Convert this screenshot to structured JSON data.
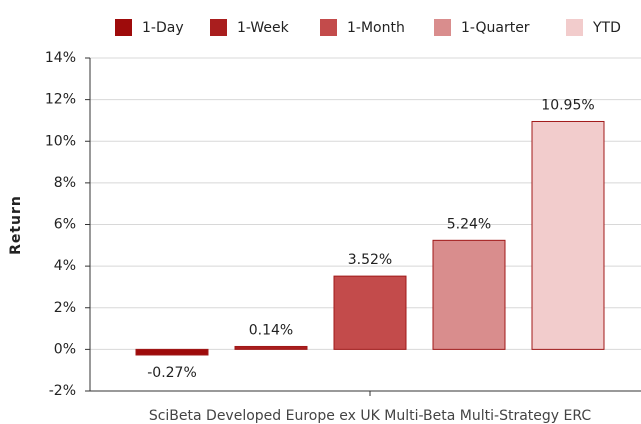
{
  "chart_data": {
    "type": "bar",
    "ylabel": "Return",
    "categories": [
      "SciBeta Developed Europe ex UK Multi-Beta Multi-Strategy ERC"
    ],
    "series": [
      {
        "name": "1-Day",
        "color": "#9e0b0b",
        "values": [
          -0.27
        ],
        "value_labels": [
          "-0.27%"
        ]
      },
      {
        "name": "1-Week",
        "color": "#a91e1e",
        "values": [
          0.14
        ],
        "value_labels": [
          "0.14%"
        ]
      },
      {
        "name": "1-Month",
        "color": "#c34b4b",
        "values": [
          3.52
        ],
        "value_labels": [
          "3.52%"
        ]
      },
      {
        "name": "1-Quarter",
        "color": "#d98d8d",
        "values": [
          5.24
        ],
        "value_labels": [
          "5.24%"
        ]
      },
      {
        "name": "YTD",
        "color": "#f2cccc",
        "values": [
          10.95
        ],
        "value_labels": [
          "10.95%"
        ]
      }
    ],
    "ylim": [
      -2,
      14
    ],
    "yticks": [
      {
        "value": -2,
        "label": "-2%"
      },
      {
        "value": 0,
        "label": "0%"
      },
      {
        "value": 2,
        "label": "2%"
      },
      {
        "value": 4,
        "label": "4%"
      },
      {
        "value": 6,
        "label": "6%"
      },
      {
        "value": 8,
        "label": "8%"
      },
      {
        "value": 10,
        "label": "10%"
      },
      {
        "value": 12,
        "label": "12%"
      },
      {
        "value": 14,
        "label": "14%"
      }
    ],
    "grid": true,
    "legend": "top"
  }
}
